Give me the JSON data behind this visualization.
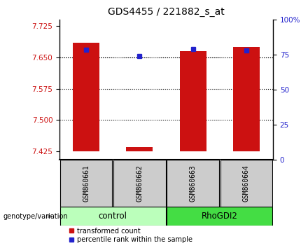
{
  "title": "GDS4455 / 221882_s_at",
  "samples": [
    "GSM860661",
    "GSM860662",
    "GSM860663",
    "GSM860664"
  ],
  "groups": [
    "control",
    "control",
    "RhoGDI2",
    "RhoGDI2"
  ],
  "group_colors": {
    "control": "#bbffbb",
    "RhoGDI2": "#44dd44"
  },
  "ylim_left": [
    7.405,
    7.74
  ],
  "yticks_left": [
    7.425,
    7.5,
    7.575,
    7.65,
    7.725
  ],
  "yticks_right": [
    0,
    25,
    50,
    75,
    100
  ],
  "yticks_right_labels": [
    "0",
    "25",
    "50",
    "75",
    "100%"
  ],
  "bar_bottom": 7.425,
  "bar_tops": [
    7.685,
    7.435,
    7.665,
    7.675
  ],
  "percentile_values": [
    7.668,
    7.653,
    7.669,
    7.667
  ],
  "bar_color": "#cc1111",
  "dot_color": "#2222cc",
  "bar_width": 0.5,
  "label_red": "transformed count",
  "label_blue": "percentile rank within the sample",
  "genotype_label": "genotype/variation",
  "sample_box_color": "#cccccc",
  "title_fontsize": 10,
  "tick_fontsize": 7.5,
  "sample_label_fontsize": 7,
  "group_label_fontsize": 8.5
}
